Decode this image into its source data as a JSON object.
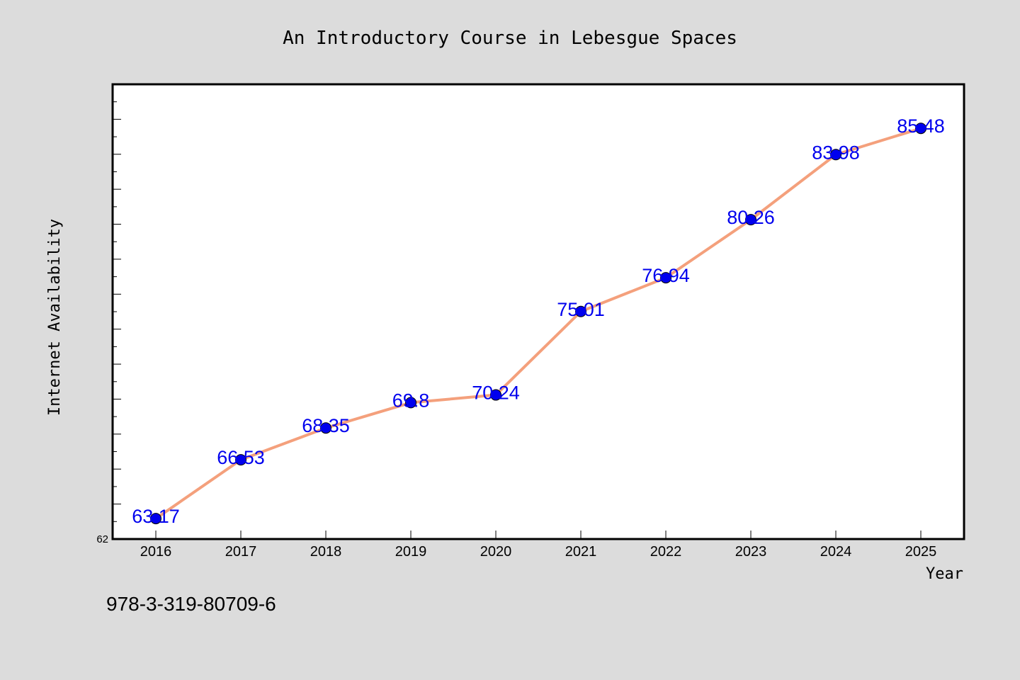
{
  "chart_data": {
    "type": "line",
    "title": "An Introductory Course in Lebesgue Spaces",
    "xlabel": "Year",
    "ylabel": "Internet Availability",
    "x": [
      "2016",
      "2017",
      "2018",
      "2019",
      "2020",
      "2021",
      "2022",
      "2023",
      "2024",
      "2025"
    ],
    "values": [
      63.17,
      66.53,
      68.35,
      69.8,
      70.24,
      75.01,
      76.94,
      80.26,
      83.98,
      85.48
    ],
    "data_labels": [
      "63.17",
      "66.53",
      "68.35",
      "69.8",
      "70.24",
      "75.01",
      "76.94",
      "80.26",
      "83.98",
      "85.48"
    ],
    "ylim": [
      62,
      88
    ],
    "y_tick_labels": [
      "62"
    ],
    "grid": false,
    "legend": "none",
    "line_color": "#f4a07c",
    "marker_color": "#0000ee",
    "label_color": "#0000ee"
  },
  "footer": {
    "isbn": "978-3-319-80709-6"
  }
}
